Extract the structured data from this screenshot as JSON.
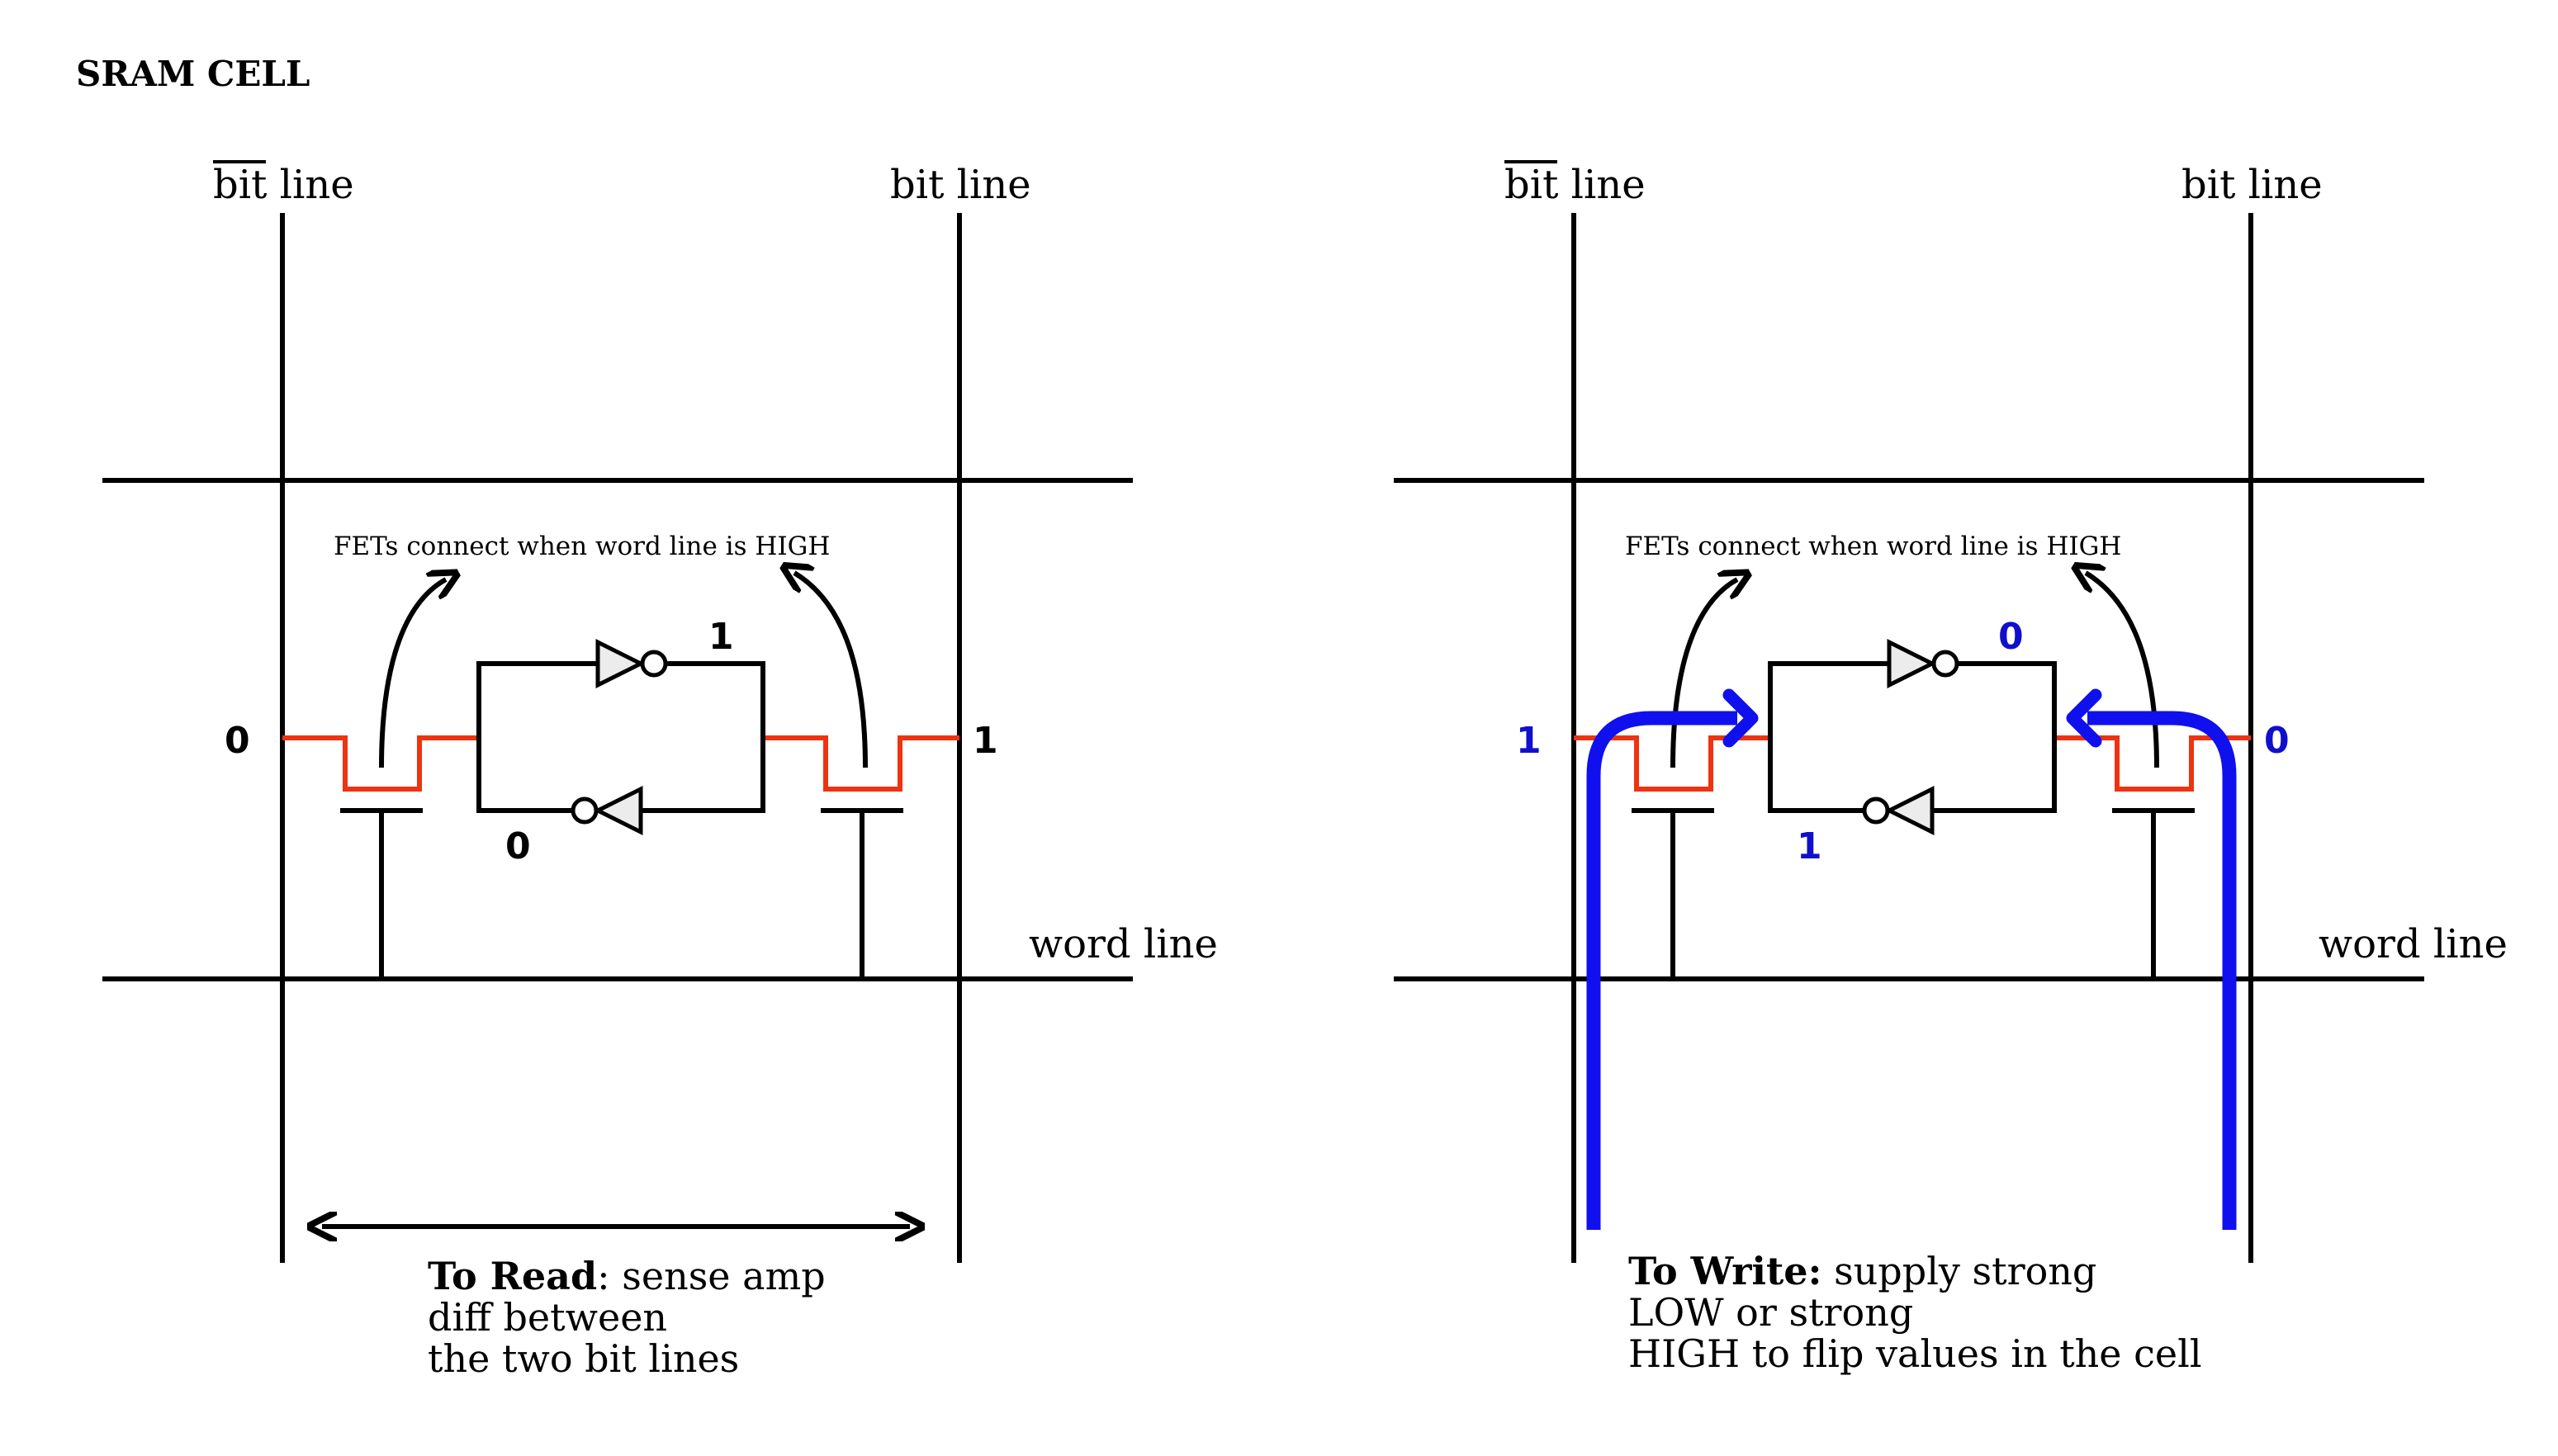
{
  "title": "SRAM CELL",
  "colors": {
    "wire": "#000000",
    "channel": "#ee3311",
    "write_path": "#1010ee",
    "write_values": "#1010cc"
  },
  "left_panel": {
    "bitbar_line_label_word": "bit",
    "bitbar_line_label_rest": " line",
    "bit_line_label": "bit line",
    "word_line_label": "word line",
    "fet_note": "FETs connect when word line is HIGH",
    "values": {
      "bitbar_side": "0",
      "bit_side": "1",
      "top_inverter": "1",
      "bottom_inverter": "0"
    },
    "caption": {
      "bold": "To Read",
      "line1_rest": ": sense amp",
      "line2": "diff between",
      "line3": "the two bit lines"
    }
  },
  "right_panel": {
    "bitbar_line_label_word": "bit",
    "bitbar_line_label_rest": " line",
    "bit_line_label": "bit line",
    "word_line_label": "word line",
    "fet_note": "FETs connect when word line is HIGH",
    "values": {
      "bitbar_side": "1",
      "bit_side": "0",
      "top_inverter": "0",
      "bottom_inverter": "1"
    },
    "caption": {
      "bold": "To Write:",
      "line1_rest": " supply strong",
      "line2": "LOW or strong",
      "line3": "HIGH to flip values in the cell"
    }
  }
}
